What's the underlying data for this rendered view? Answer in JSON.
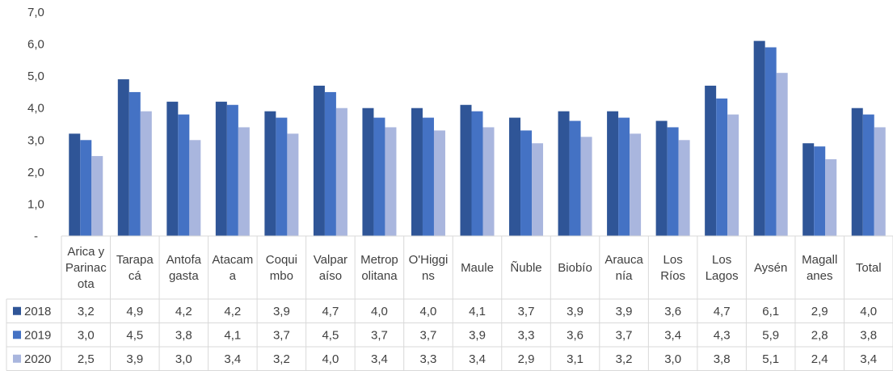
{
  "chart_data": {
    "type": "bar",
    "categories": [
      [
        "Arica y",
        "Parinac",
        "ota"
      ],
      [
        "Tarapa",
        "cá"
      ],
      [
        "Antofa",
        "gasta"
      ],
      [
        "Atacam",
        "a"
      ],
      [
        "Coqui",
        "mbo"
      ],
      [
        "Valpar",
        "aíso"
      ],
      [
        "Metrop",
        "olitana"
      ],
      [
        "O'Higgi",
        "ns"
      ],
      [
        "Maule"
      ],
      [
        "Ñuble"
      ],
      [
        "Biobío"
      ],
      [
        "Arauca",
        "nía"
      ],
      [
        "Los",
        "Ríos"
      ],
      [
        "Los",
        "Lagos"
      ],
      [
        "Aysén"
      ],
      [
        "Magall",
        "anes"
      ],
      [
        "Total"
      ]
    ],
    "series": [
      {
        "name": "2018",
        "color": "#2f5597",
        "values": [
          3.2,
          4.9,
          4.2,
          4.2,
          3.9,
          4.7,
          4.0,
          4.0,
          4.1,
          3.7,
          3.9,
          3.9,
          3.6,
          4.7,
          6.1,
          2.9,
          4.0
        ],
        "labels": [
          "3,2",
          "4,9",
          "4,2",
          "4,2",
          "3,9",
          "4,7",
          "4,0",
          "4,0",
          "4,1",
          "3,7",
          "3,9",
          "3,9",
          "3,6",
          "4,7",
          "6,1",
          "2,9",
          "4,0"
        ]
      },
      {
        "name": "2019",
        "color": "#4472c4",
        "values": [
          3.0,
          4.5,
          3.8,
          4.1,
          3.7,
          4.5,
          3.7,
          3.7,
          3.9,
          3.3,
          3.6,
          3.7,
          3.4,
          4.3,
          5.9,
          2.8,
          3.8
        ],
        "labels": [
          "3,0",
          "4,5",
          "3,8",
          "4,1",
          "3,7",
          "4,5",
          "3,7",
          "3,7",
          "3,9",
          "3,3",
          "3,6",
          "3,7",
          "3,4",
          "4,3",
          "5,9",
          "2,8",
          "3,8"
        ]
      },
      {
        "name": "2020",
        "color": "#a9b6de",
        "values": [
          2.5,
          3.9,
          3.0,
          3.4,
          3.2,
          4.0,
          3.4,
          3.3,
          3.4,
          2.9,
          3.1,
          3.2,
          3.0,
          3.8,
          5.1,
          2.4,
          3.4
        ],
        "labels": [
          "2,5",
          "3,9",
          "3,0",
          "3,4",
          "3,2",
          "4,0",
          "3,4",
          "3,3",
          "3,4",
          "2,9",
          "3,1",
          "3,2",
          "3,0",
          "3,8",
          "5,1",
          "2,4",
          "3,4"
        ]
      }
    ],
    "y_ticks": [
      "-",
      "1,0",
      "2,0",
      "3,0",
      "4,0",
      "5,0",
      "6,0",
      "7,0"
    ],
    "ylim": [
      0,
      7
    ],
    "grid": false,
    "legend": "data-table",
    "table_lines_color": "#d9d9d9"
  }
}
